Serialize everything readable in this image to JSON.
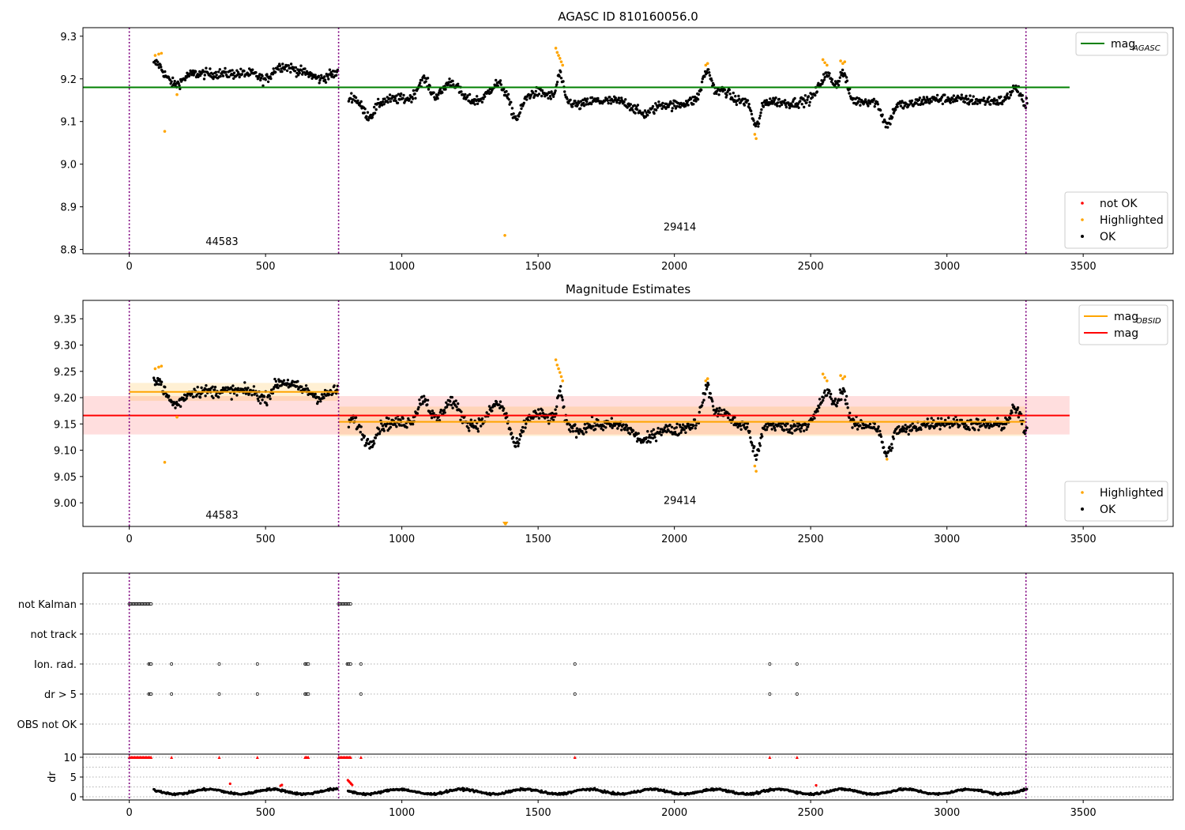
{
  "chart_data": [
    {
      "type": "scatter",
      "title": "AGASC ID 810160056.0",
      "xlabel": "",
      "ylabel": "",
      "xlim": [
        -170,
        3830
      ],
      "ylim": [
        8.79,
        9.32
      ],
      "xticks": [
        0,
        500,
        1000,
        1500,
        2000,
        2500,
        3000,
        3500
      ],
      "yticks": [
        8.8,
        8.9,
        9.0,
        9.1,
        9.2,
        9.3
      ],
      "ytick_labels": [
        "8.8",
        "8.9",
        "9.0",
        "9.1",
        "9.2",
        "9.3"
      ],
      "obs_boundaries": [
        0,
        768,
        3290
      ],
      "obsids": [
        {
          "label": "44583",
          "x": 340,
          "y": 8.81
        },
        {
          "label": "29414",
          "x": 2020,
          "y": 8.845
        }
      ],
      "lines": [
        {
          "name": "mag",
          "subscript": "AGASC",
          "color": "#008000",
          "x0": -170,
          "x1": 3450,
          "y": 9.18
        }
      ],
      "bands": [],
      "highlighted": [
        {
          "x": 95,
          "y": 9.255
        },
        {
          "x": 108,
          "y": 9.258
        },
        {
          "x": 118,
          "y": 9.26
        },
        {
          "x": 130,
          "y": 9.077
        },
        {
          "x": 175,
          "y": 9.163
        },
        {
          "x": 1378,
          "y": 8.833
        },
        {
          "x": 1565,
          "y": 9.272
        },
        {
          "x": 1570,
          "y": 9.262
        },
        {
          "x": 1575,
          "y": 9.255
        },
        {
          "x": 1580,
          "y": 9.248
        },
        {
          "x": 1585,
          "y": 9.24
        },
        {
          "x": 1590,
          "y": 9.232
        },
        {
          "x": 2115,
          "y": 9.232
        },
        {
          "x": 2122,
          "y": 9.236
        },
        {
          "x": 2295,
          "y": 9.07
        },
        {
          "x": 2300,
          "y": 9.06
        },
        {
          "x": 2545,
          "y": 9.245
        },
        {
          "x": 2552,
          "y": 9.238
        },
        {
          "x": 2560,
          "y": 9.232
        },
        {
          "x": 2610,
          "y": 9.242
        },
        {
          "x": 2618,
          "y": 9.236
        },
        {
          "x": 2625,
          "y": 9.24
        }
      ],
      "legend_upper": [
        {
          "label": "mag",
          "subscript": "AGASC",
          "color": "#008000",
          "kind": "line"
        }
      ],
      "legend_lower": [
        {
          "label": "not OK",
          "color": "#ff0000",
          "kind": "dot"
        },
        {
          "label": "Highlighted",
          "color": "#ffa500",
          "kind": "dot"
        },
        {
          "label": "OK",
          "color": "#000000",
          "kind": "dot"
        }
      ]
    },
    {
      "type": "scatter",
      "title": "Magnitude Estimates",
      "xlabel": "",
      "ylabel": "",
      "xlim": [
        -170,
        3830
      ],
      "ylim": [
        8.955,
        9.385
      ],
      "xticks": [
        0,
        500,
        1000,
        1500,
        2000,
        2500,
        3000,
        3500
      ],
      "yticks": [
        9.0,
        9.05,
        9.1,
        9.15,
        9.2,
        9.25,
        9.3,
        9.35
      ],
      "ytick_labels": [
        "9.00",
        "9.05",
        "9.10",
        "9.15",
        "9.20",
        "9.25",
        "9.30",
        "9.35"
      ],
      "obs_boundaries": [
        0,
        768,
        3290
      ],
      "obsids": [
        {
          "label": "44583",
          "x": 340,
          "y": 8.97
        },
        {
          "label": "29414",
          "x": 2020,
          "y": 8.998
        }
      ],
      "lines": [
        {
          "name": "mag",
          "subscript": "",
          "color": "#ff0000",
          "x0": -170,
          "x1": 3450,
          "y": 9.166
        },
        {
          "name": "mag",
          "subscript": "OBSID",
          "color": "#ffa500",
          "x0": 0,
          "x1": 768,
          "y": 9.211
        },
        {
          "name": "mag",
          "subscript": "OBSID",
          "color": "#ffa500",
          "x0": 768,
          "x1": 3290,
          "y": 9.154
        }
      ],
      "bands": [
        {
          "color": "#ff0000",
          "opacity": 0.13,
          "x0": -170,
          "x1": 3450,
          "y0": 9.13,
          "y1": 9.203
        },
        {
          "color": "#ffa500",
          "opacity": 0.17,
          "x0": 0,
          "x1": 768,
          "y0": 9.194,
          "y1": 9.228
        },
        {
          "color": "#ffa500",
          "opacity": 0.17,
          "x0": 768,
          "x1": 3290,
          "y0": 9.127,
          "y1": 9.183
        }
      ],
      "highlighted": [
        {
          "x": 95,
          "y": 9.255
        },
        {
          "x": 108,
          "y": 9.258
        },
        {
          "x": 118,
          "y": 9.26
        },
        {
          "x": 130,
          "y": 9.077
        },
        {
          "x": 175,
          "y": 9.163
        },
        {
          "x": 1378,
          "y": 8.957
        },
        {
          "x": 1382,
          "y": 8.958
        },
        {
          "x": 1565,
          "y": 9.272
        },
        {
          "x": 1570,
          "y": 9.262
        },
        {
          "x": 1575,
          "y": 9.255
        },
        {
          "x": 1580,
          "y": 9.248
        },
        {
          "x": 1585,
          "y": 9.24
        },
        {
          "x": 1590,
          "y": 9.232
        },
        {
          "x": 2115,
          "y": 9.232
        },
        {
          "x": 2122,
          "y": 9.236
        },
        {
          "x": 2295,
          "y": 9.07
        },
        {
          "x": 2300,
          "y": 9.06
        },
        {
          "x": 2545,
          "y": 9.245
        },
        {
          "x": 2552,
          "y": 9.238
        },
        {
          "x": 2560,
          "y": 9.232
        },
        {
          "x": 2610,
          "y": 9.242
        },
        {
          "x": 2618,
          "y": 9.236
        },
        {
          "x": 2625,
          "y": 9.24
        },
        {
          "x": 2780,
          "y": 9.083
        }
      ],
      "legend_upper": [
        {
          "label": "mag",
          "subscript": "OBSID",
          "color": "#ffa500",
          "kind": "line"
        },
        {
          "label": "mag",
          "subscript": "",
          "color": "#ff0000",
          "kind": "line"
        }
      ],
      "legend_lower": [
        {
          "label": "Highlighted",
          "color": "#ffa500",
          "kind": "dot"
        },
        {
          "label": "OK",
          "color": "#000000",
          "kind": "dot"
        }
      ]
    },
    {
      "type": "scatter",
      "title": "",
      "xlabel": "",
      "ylabel": "",
      "xlim": [
        -170,
        3830
      ],
      "categories": [
        "not Kalman",
        "not track",
        "Ion. rad.",
        "dr > 5",
        "OBS not OK"
      ],
      "obs_boundaries": [
        0,
        768,
        3290
      ],
      "flags": {
        "not Kalman": [
          [
            0,
            80
          ],
          [
            768,
            815
          ]
        ],
        "not track": [],
        "Ion. rad.": [
          [
            72,
            82
          ],
          [
            155,
            155
          ],
          [
            330,
            330
          ],
          [
            470,
            470
          ],
          [
            645,
            660
          ],
          [
            800,
            815
          ],
          [
            850,
            850
          ],
          [
            1635,
            1635
          ],
          [
            2350,
            2350
          ],
          [
            2450,
            2450
          ]
        ],
        "dr > 5": [
          [
            72,
            82
          ],
          [
            155,
            155
          ],
          [
            330,
            330
          ],
          [
            470,
            470
          ],
          [
            645,
            660
          ],
          [
            850,
            850
          ],
          [
            1635,
            1635
          ],
          [
            2350,
            2350
          ],
          [
            2450,
            2450
          ]
        ],
        "OBS not OK": []
      }
    },
    {
      "type": "scatter",
      "title": "",
      "xlabel": "",
      "ylabel": "dr",
      "xlim": [
        -170,
        3830
      ],
      "ylim": [
        -0.8,
        10.8
      ],
      "yticks": [
        0,
        5,
        10
      ],
      "ytick_labels": [
        "0",
        "5",
        "10"
      ],
      "obs_boundaries": [
        0,
        768,
        3290
      ],
      "clipped_at_top": [
        [
          0,
          80
        ],
        [
          155,
          155
        ],
        [
          330,
          330
        ],
        [
          470,
          470
        ],
        [
          645,
          660
        ],
        [
          768,
          815
        ],
        [
          850,
          850
        ],
        [
          1635,
          1635
        ],
        [
          2350,
          2350
        ],
        [
          2450,
          2450
        ]
      ],
      "red_points": [
        {
          "x": 370,
          "y": 3.3
        },
        {
          "x": 555,
          "y": 2.8
        },
        {
          "x": 560,
          "y": 3.0
        },
        {
          "x": 802,
          "y": 4.2
        },
        {
          "x": 806,
          "y": 3.9
        },
        {
          "x": 810,
          "y": 3.6
        },
        {
          "x": 814,
          "y": 3.3
        },
        {
          "x": 818,
          "y": 3.0
        },
        {
          "x": 2520,
          "y": 2.9
        }
      ]
    }
  ]
}
